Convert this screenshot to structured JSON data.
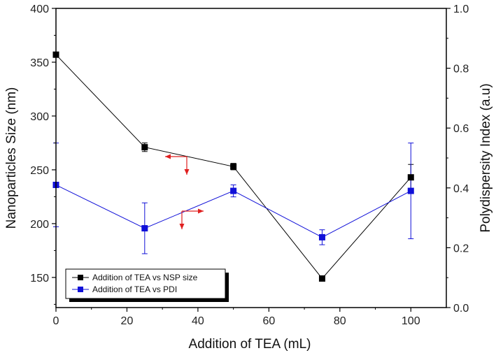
{
  "chart_data": {
    "type": "line",
    "xlabel": "Addition of TEA (mL)",
    "ylabel_left": "Nanoparticles Size (nm)",
    "ylabel_right": "Polydispersity Index (a.u)",
    "xlim": [
      0,
      110
    ],
    "ylim_left": [
      122,
      400
    ],
    "ylim_right": [
      0.0,
      1.0
    ],
    "xticks": [
      0,
      20,
      40,
      60,
      80,
      100
    ],
    "yticks_left": [
      150,
      200,
      250,
      300,
      350,
      400
    ],
    "yticks_right": [
      0.0,
      0.2,
      0.4,
      0.6,
      0.8,
      1.0
    ],
    "ytick_labels_right": [
      "0.0",
      "0.2",
      "0.4",
      "0.6",
      "0.8",
      "1.0"
    ],
    "grid": false,
    "legend_position": "bottom-left",
    "series": [
      {
        "name": "Addition of TEA vs NSP size",
        "axis": "left",
        "color": "#000000",
        "x": [
          0,
          25,
          50,
          75,
          100
        ],
        "y": [
          357,
          271,
          253,
          149,
          243
        ],
        "yerr": [
          2,
          4,
          3,
          0,
          12
        ]
      },
      {
        "name": "Addition of TEA vs PDI",
        "axis": "right",
        "color": "#1010d8",
        "x": [
          0,
          25,
          50,
          75,
          100
        ],
        "y": [
          0.41,
          0.265,
          0.39,
          0.235,
          0.39
        ],
        "yerr": [
          0.14,
          0.085,
          0.02,
          0.025,
          0.16
        ]
      }
    ],
    "annotation_color": "#e02020"
  }
}
